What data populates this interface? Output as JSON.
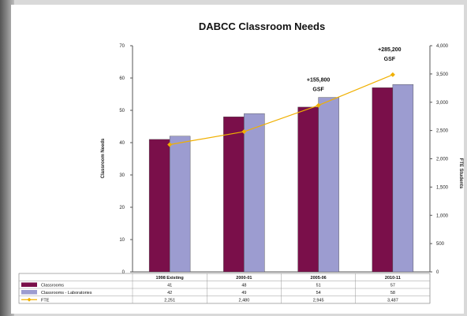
{
  "chart_data": {
    "type": "bar",
    "title": "DABCC Classroom Needs",
    "ylabel": "Classroom Needs",
    "y2label": "FTE Students",
    "ylim": [
      0,
      70
    ],
    "y2lim": [
      0,
      4000
    ],
    "yticks": [
      "0",
      "10",
      "20",
      "30",
      "40",
      "50",
      "60",
      "70"
    ],
    "y2ticks": [
      "0",
      "500",
      "1,000",
      "1,500",
      "2,000",
      "2,500",
      "3,000",
      "3,500",
      "4,000"
    ],
    "categories": [
      "1998 Existing",
      "2000-01",
      "2005-06",
      "2010-11"
    ],
    "series": [
      {
        "name": "Classrooms",
        "values": [
          41,
          48,
          51,
          57
        ],
        "color": "#7a0f4a",
        "labels": [
          "41",
          "48",
          "51",
          "57"
        ]
      },
      {
        "name": "Classrooms - Laboratories",
        "values": [
          42,
          49,
          54,
          58
        ],
        "color": "#9c9cd0",
        "labels": [
          "42",
          "49",
          "54",
          "58"
        ]
      },
      {
        "name": "FTE",
        "type": "line",
        "axis": "right",
        "values": [
          2251,
          2480,
          2945,
          3487
        ],
        "color": "#f0b000",
        "labels": [
          "2,251",
          "2,480",
          "2,945",
          "3,487"
        ]
      }
    ],
    "annotations": [
      {
        "category": "2005-06",
        "lines": [
          "+155,800",
          "GSF"
        ]
      },
      {
        "category": "2010-11",
        "lines": [
          "+285,200",
          "GSF"
        ]
      }
    ],
    "grid": false,
    "legend": "table-bottom"
  }
}
